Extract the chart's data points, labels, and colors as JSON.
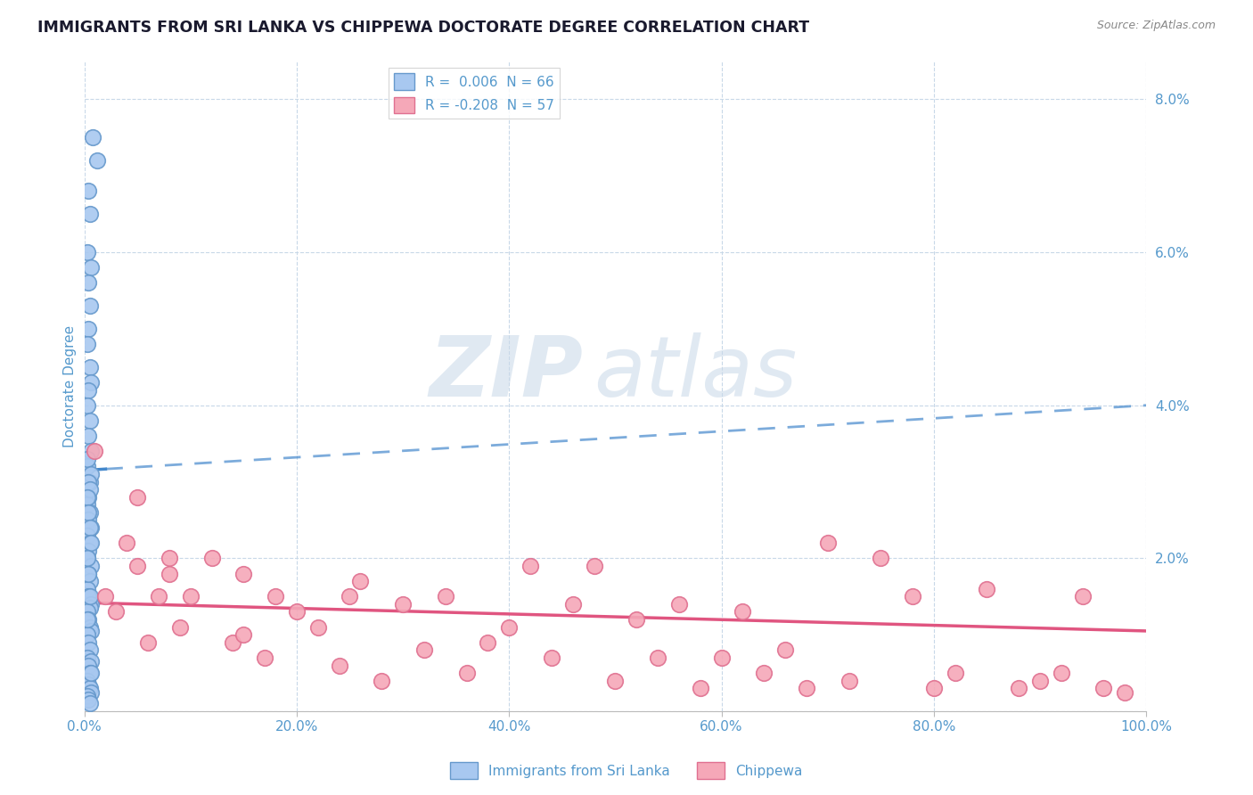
{
  "title": "IMMIGRANTS FROM SRI LANKA VS CHIPPEWA DOCTORATE DEGREE CORRELATION CHART",
  "source_text": "Source: ZipAtlas.com",
  "ylabel": "Doctorate Degree",
  "xlabel": "",
  "xlim": [
    0,
    100
  ],
  "ylim": [
    0,
    8.5
  ],
  "watermark_zip": "ZIP",
  "watermark_atlas": "atlas",
  "sri_lanka_color": "#a8c8f0",
  "chippewa_color": "#f5a8b8",
  "sri_lanka_edge": "#6699cc",
  "chippewa_edge": "#e07090",
  "sri_lanka_R": 0.006,
  "sri_lanka_N": 66,
  "chippewa_R": -0.208,
  "chippewa_N": 57,
  "legend_label_1": "Immigrants from Sri Lanka",
  "legend_label_2": "Chippewa",
  "title_color": "#1a1a2e",
  "axis_color": "#5599cc",
  "grid_color": "#c8d8e8",
  "trend_blue": "#4488cc",
  "trend_pink": "#e05580",
  "sri_lanka_x": [
    0.8,
    1.2,
    0.4,
    0.5,
    0.3,
    0.6,
    0.4,
    0.5,
    0.4,
    0.3,
    0.5,
    0.6,
    0.4,
    0.3,
    0.5,
    0.4,
    0.6,
    0.3,
    0.5,
    0.4,
    0.3,
    0.5,
    0.4,
    0.6,
    0.3,
    0.5,
    0.4,
    0.3,
    0.6,
    0.4,
    0.5,
    0.3,
    0.4,
    0.6,
    0.5,
    0.3,
    0.4,
    0.5,
    0.6,
    0.3,
    0.4,
    0.5,
    0.3,
    0.6,
    0.4,
    0.5,
    0.3,
    0.4,
    0.5,
    0.6,
    0.3,
    0.4,
    0.5,
    0.3,
    0.6,
    0.4,
    0.5,
    0.3,
    0.4,
    0.5,
    0.6,
    0.3,
    0.4,
    0.5,
    0.3,
    0.6
  ],
  "sri_lanka_y": [
    7.5,
    7.2,
    6.8,
    6.5,
    6.0,
    5.8,
    5.6,
    5.3,
    5.0,
    4.8,
    4.5,
    4.3,
    4.2,
    4.0,
    3.8,
    3.6,
    3.4,
    3.2,
    3.0,
    2.8,
    2.7,
    2.6,
    2.5,
    2.4,
    2.3,
    2.2,
    2.1,
    2.0,
    1.9,
    1.8,
    1.7,
    1.6,
    1.5,
    1.4,
    1.35,
    1.3,
    1.2,
    1.1,
    1.05,
    1.0,
    0.9,
    0.8,
    0.7,
    0.65,
    0.6,
    0.5,
    0.4,
    0.35,
    0.3,
    0.25,
    0.2,
    0.15,
    0.1,
    3.3,
    3.1,
    3.0,
    2.9,
    2.8,
    2.6,
    2.4,
    2.2,
    2.0,
    1.8,
    1.5,
    1.2,
    0.5
  ],
  "chippewa_x": [
    1.0,
    2.0,
    3.0,
    4.0,
    5.0,
    6.0,
    7.0,
    8.0,
    9.0,
    10.0,
    12.0,
    14.0,
    15.0,
    17.0,
    18.0,
    20.0,
    22.0,
    24.0,
    26.0,
    28.0,
    30.0,
    32.0,
    34.0,
    36.0,
    38.0,
    40.0,
    42.0,
    44.0,
    46.0,
    48.0,
    50.0,
    52.0,
    54.0,
    56.0,
    58.0,
    60.0,
    62.0,
    64.0,
    66.0,
    68.0,
    70.0,
    72.0,
    75.0,
    78.0,
    80.0,
    82.0,
    85.0,
    88.0,
    90.0,
    92.0,
    94.0,
    96.0,
    98.0,
    5.0,
    8.0,
    15.0,
    25.0
  ],
  "chippewa_y": [
    3.4,
    1.5,
    1.3,
    2.2,
    1.9,
    0.9,
    1.5,
    2.0,
    1.1,
    1.5,
    2.0,
    0.9,
    1.8,
    0.7,
    1.5,
    1.3,
    1.1,
    0.6,
    1.7,
    0.4,
    1.4,
    0.8,
    1.5,
    0.5,
    0.9,
    1.1,
    1.9,
    0.7,
    1.4,
    1.9,
    0.4,
    1.2,
    0.7,
    1.4,
    0.3,
    0.7,
    1.3,
    0.5,
    0.8,
    0.3,
    2.2,
    0.4,
    2.0,
    1.5,
    0.3,
    0.5,
    1.6,
    0.3,
    0.4,
    0.5,
    1.5,
    0.3,
    0.25,
    2.8,
    1.8,
    1.0,
    1.5
  ],
  "sri_trend_x0": 0,
  "sri_trend_y0": 3.15,
  "sri_trend_x1": 100,
  "sri_trend_y1": 4.0,
  "sri_solid_end": 2.0,
  "chip_trend_x0": 0,
  "chip_trend_y0": 1.42,
  "chip_trend_x1": 100,
  "chip_trend_y1": 1.05
}
